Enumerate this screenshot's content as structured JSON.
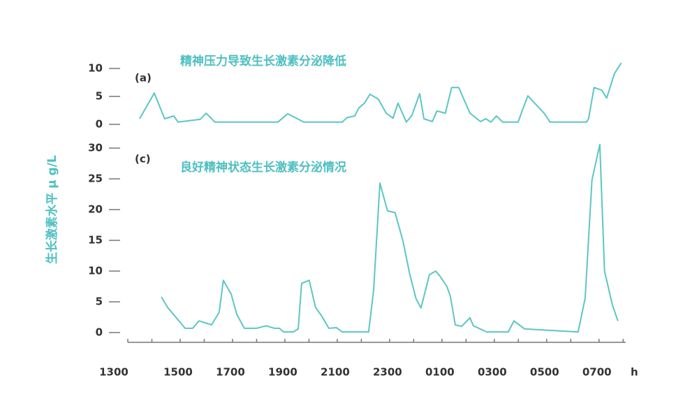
{
  "y_axis_label": "生长激素水平 μ g/L",
  "chart_data": [
    {
      "type": "line",
      "panel": "(a)",
      "title": "精神压力导致生长激素分泌降低",
      "x": [
        13.53,
        14.09,
        14.49,
        14.84,
        15.0,
        15.85,
        16.07,
        16.41,
        18.81,
        19.19,
        19.8,
        21.27,
        21.45,
        21.75,
        21.9,
        22.12,
        22.33,
        22.65,
        22.95,
        23.21,
        23.4,
        23.72,
        23.93,
        24.23,
        24.39,
        24.71,
        24.89,
        25.21,
        25.45,
        25.72,
        26.15,
        26.55,
        26.76,
        26.95,
        27.16,
        27.4,
        27.99,
        28.15,
        28.36,
        29.0,
        29.21,
        30.6,
        30.68,
        30.89,
        31.19,
        31.37,
        31.67,
        31.93
      ],
      "series": [
        {
          "color": "#5cc6c4",
          "values": [
            1,
            5.6,
            1,
            1.5,
            0.4,
            0.9,
            2,
            0.4,
            0.4,
            1.9,
            0.4,
            0.4,
            1.2,
            1.5,
            2.9,
            3.8,
            5.4,
            4.5,
            2,
            1.1,
            3.8,
            0.4,
            1.6,
            5.5,
            1,
            0.5,
            2.4,
            2,
            6.6,
            6.6,
            2,
            0.5,
            1,
            0.4,
            1.5,
            0.4,
            0.4,
            2.5,
            5.1,
            1.9,
            0.4,
            0.4,
            1,
            6.6,
            6.1,
            4.7,
            9.1,
            11
          ]
        }
      ],
      "xlim": [
        13,
        32.1
      ],
      "ylim": [
        0,
        10
      ],
      "yticks": [
        0,
        5,
        10
      ]
    },
    {
      "type": "line",
      "panel": "(c)",
      "title": "良好精神状态生长激素分泌情况",
      "xlabel": "h",
      "x": [
        14.36,
        14.6,
        15.27,
        15.56,
        15.8,
        16.28,
        16.57,
        16.73,
        17.03,
        17.24,
        17.53,
        18.01,
        18.36,
        18.68,
        18.87,
        19.03,
        19.4,
        19.59,
        19.72,
        20.01,
        20.25,
        20.47,
        20.76,
        21.05,
        21.27,
        22.28,
        22.47,
        22.71,
        23.0,
        23.29,
        23.59,
        23.85,
        24.09,
        24.28,
        24.6,
        24.84,
        25.0,
        25.27,
        25.4,
        25.59,
        25.83,
        26.15,
        26.28,
        26.79,
        27.61,
        27.83,
        28.23,
        30.28,
        30.55,
        30.81,
        31.11,
        31.29,
        31.59,
        31.8
      ],
      "series": [
        {
          "color": "#5cc6c4",
          "values": [
            5.8,
            4.1,
            0.7,
            0.7,
            1.9,
            1.25,
            3.3,
            8.5,
            6.25,
            3,
            0.7,
            0.7,
            1.1,
            0.7,
            0.7,
            0.1,
            0.1,
            0.6,
            8,
            8.5,
            4.1,
            2.8,
            0.7,
            0.8,
            0.1,
            0.1,
            6.9,
            24.3,
            19.8,
            19.5,
            14.9,
            9.5,
            5.5,
            4,
            9.4,
            10,
            9.2,
            7.5,
            5.9,
            1.25,
            1,
            2.4,
            1.1,
            0.1,
            0.1,
            1.9,
            0.6,
            0.1,
            5.6,
            24.8,
            30.6,
            10,
            4.5,
            1.9
          ]
        }
      ],
      "xlim": [
        13,
        32.1
      ],
      "ylim": [
        0,
        30
      ],
      "yticks": [
        0,
        5,
        10,
        15,
        20,
        25,
        30
      ],
      "xticks": [
        {
          "value": 13,
          "label": "1300"
        },
        {
          "value": 15,
          "label": "1500"
        },
        {
          "value": 17,
          "label": "1700"
        },
        {
          "value": 19,
          "label": "1900"
        },
        {
          "value": 21,
          "label": "2100"
        },
        {
          "value": 23,
          "label": "2300"
        },
        {
          "value": 25,
          "label": "0100"
        },
        {
          "value": 27,
          "label": "0300"
        },
        {
          "value": 29,
          "label": "0500"
        },
        {
          "value": 31,
          "label": "0700"
        }
      ],
      "xminorticks": [
        14,
        16,
        18,
        20,
        22,
        24,
        26,
        28,
        30,
        32
      ]
    }
  ]
}
